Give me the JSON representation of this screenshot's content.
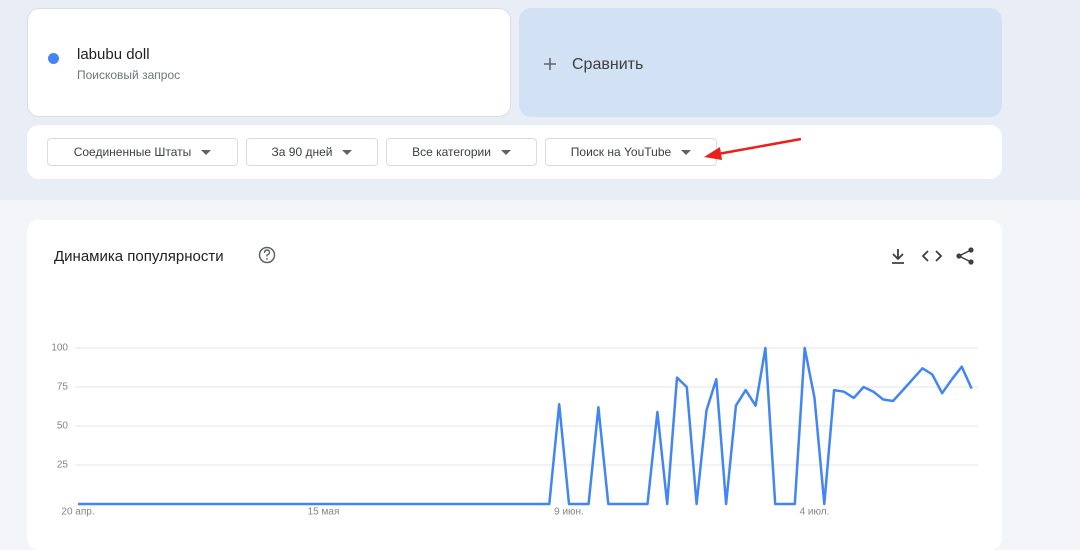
{
  "term_card": {
    "term": "labubu doll",
    "subtitle": "Поисковый запрос"
  },
  "compare": {
    "label": "Сравнить"
  },
  "filters": [
    "Соединенные Штаты",
    "За 90 дней",
    "Все категории",
    "Поиск на YouTube"
  ],
  "chart_data": {
    "type": "line",
    "title": "Динамика популярности",
    "categories": [
      "20 апр.",
      null,
      null,
      null,
      null,
      null,
      null,
      null,
      null,
      null,
      null,
      null,
      null,
      null,
      null,
      null,
      null,
      null,
      null,
      null,
      null,
      null,
      null,
      null,
      null,
      "15 мая",
      null,
      null,
      null,
      null,
      null,
      null,
      null,
      null,
      null,
      null,
      null,
      null,
      null,
      null,
      null,
      null,
      null,
      null,
      null,
      null,
      null,
      null,
      null,
      null,
      "9 июн.",
      null,
      null,
      null,
      null,
      null,
      null,
      null,
      null,
      null,
      null,
      null,
      null,
      null,
      null,
      null,
      null,
      null,
      null,
      null,
      null,
      null,
      null,
      null,
      null,
      "4 июл.",
      null,
      null,
      null,
      null,
      null,
      null,
      null,
      null,
      null,
      null,
      null,
      null,
      null,
      null,
      null,
      null
    ],
    "values": [
      0,
      0,
      0,
      0,
      0,
      0,
      0,
      0,
      0,
      0,
      0,
      0,
      0,
      0,
      0,
      0,
      0,
      0,
      0,
      0,
      0,
      0,
      0,
      0,
      0,
      0,
      0,
      0,
      0,
      0,
      0,
      0,
      0,
      0,
      0,
      0,
      0,
      0,
      0,
      0,
      0,
      0,
      0,
      0,
      0,
      0,
      0,
      0,
      0,
      64,
      0,
      0,
      0,
      62,
      0,
      0,
      0,
      0,
      0,
      59,
      0,
      81,
      75,
      0,
      60,
      80,
      0,
      63,
      73,
      63,
      100,
      0,
      0,
      0,
      100,
      68,
      0,
      73,
      72,
      68,
      75,
      72,
      67,
      66,
      73,
      80,
      87,
      83,
      71,
      80,
      88,
      74
    ],
    "color": "#4285f4",
    "ylim": [
      0,
      100
    ],
    "yticks": [
      25,
      50,
      75,
      100
    ],
    "grid": true
  }
}
